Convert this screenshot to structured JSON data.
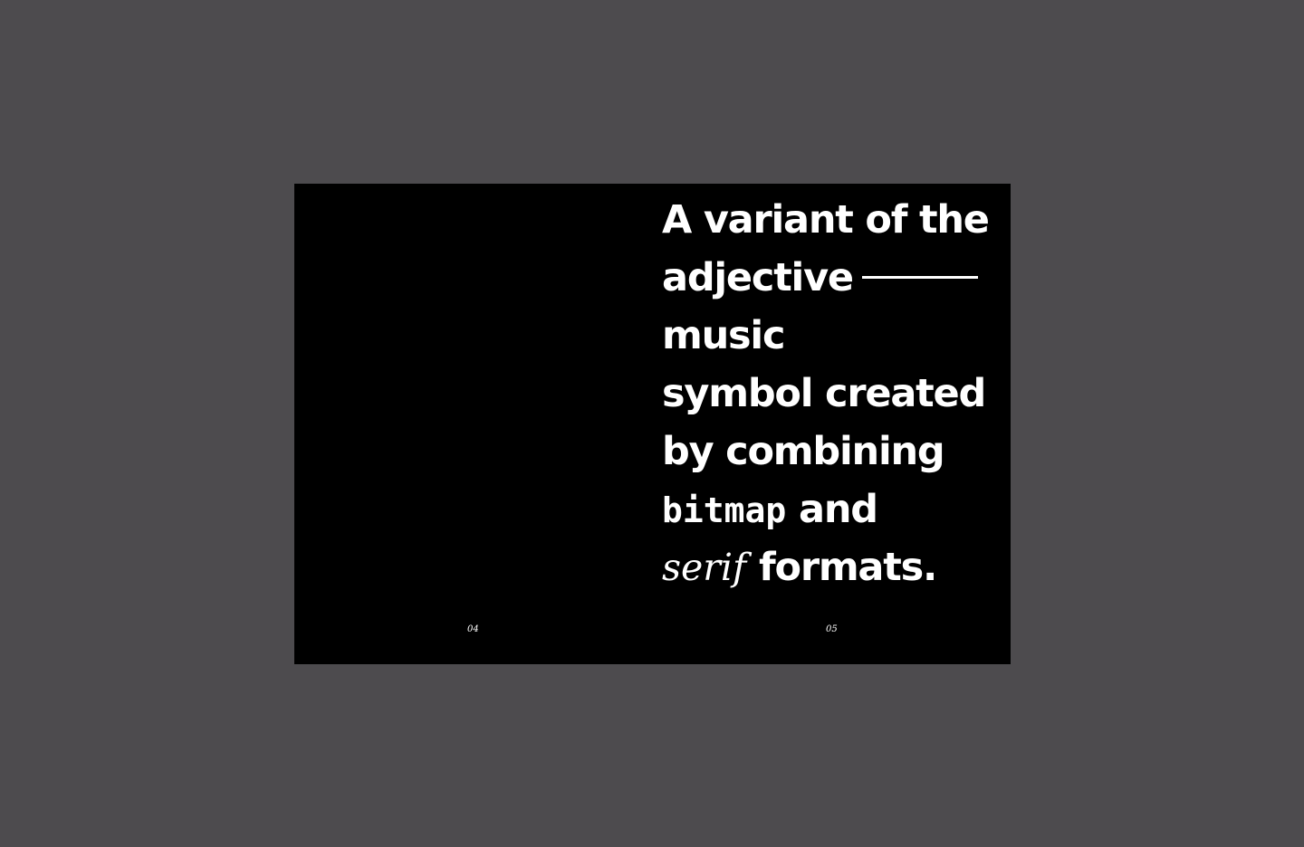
{
  "spread": {
    "background": "#000000",
    "text_color": "#ffffff",
    "lines": [
      {
        "text": "A variant of the"
      },
      {
        "text": "adjective"
      },
      {
        "text": "music"
      },
      {
        "text": "symbol created"
      },
      {
        "text": "by combining"
      },
      {
        "mono": "bitmap",
        "text": " and"
      },
      {
        "serif": "serif",
        "text": " formats."
      }
    ],
    "page_numbers": {
      "left": "04",
      "right": "05"
    }
  },
  "colors": {
    "canvas": "#4d4b4e",
    "spread": "#000000",
    "text": "#ffffff"
  }
}
